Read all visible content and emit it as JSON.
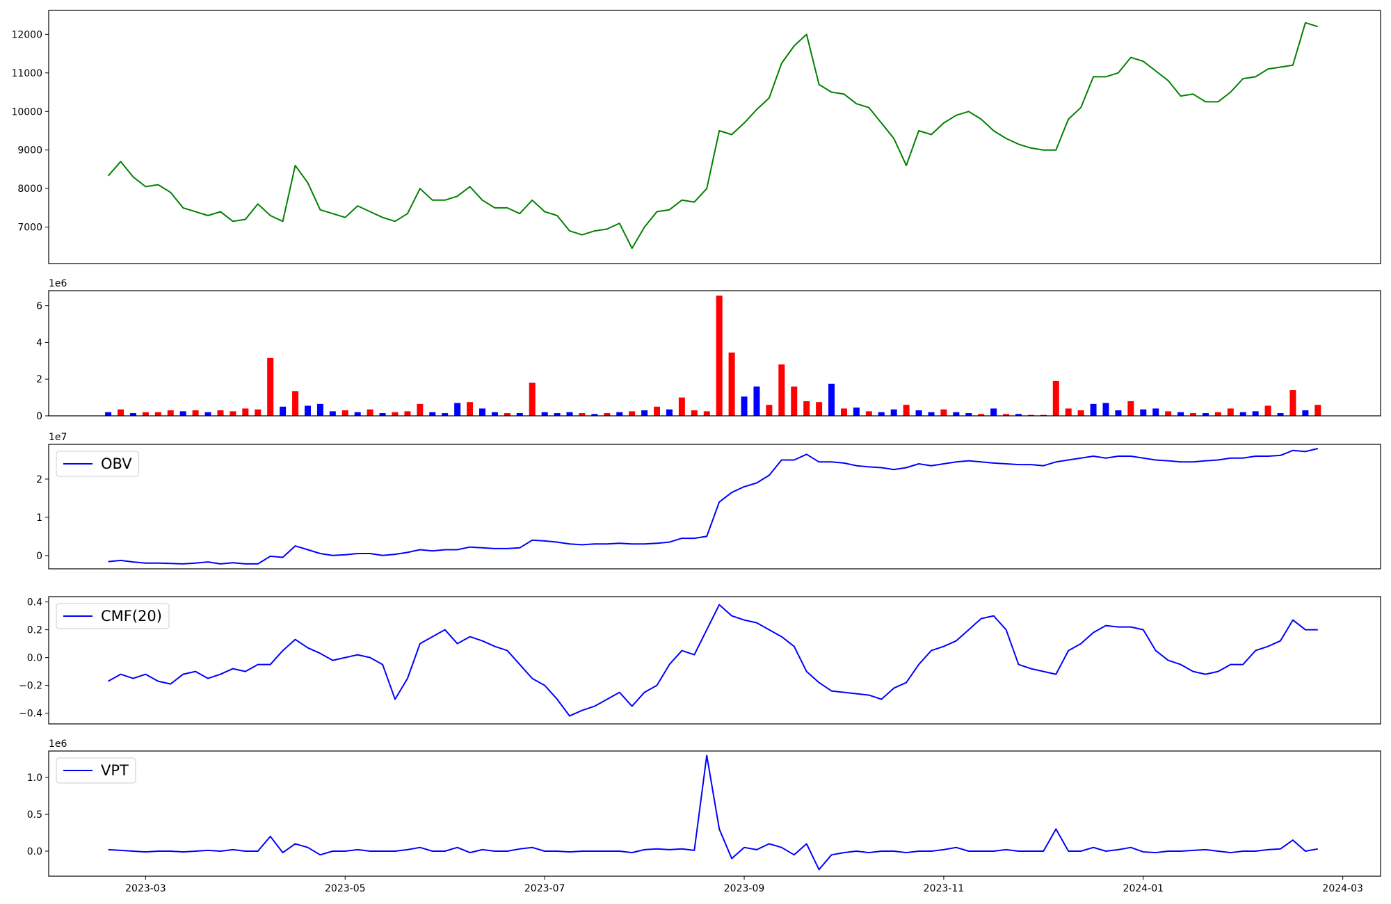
{
  "chart_data": [
    {
      "type": "line",
      "ylim": [
        6055,
        12620
      ],
      "yticks": [
        7000,
        8000,
        9000,
        10000,
        11000,
        12000
      ],
      "series": [
        {
          "color": "green",
          "values": [
            8330,
            8700,
            8300,
            8050,
            8100,
            7900,
            7500,
            7400,
            7300,
            7400,
            7150,
            7200,
            7600,
            7300,
            7150,
            8600,
            8150,
            7450,
            7350,
            7250,
            7550,
            7400,
            7250,
            7150,
            7350,
            8000,
            7700,
            7700,
            7800,
            8050,
            7700,
            7500,
            7500,
            7350,
            7700,
            7400,
            7300,
            6900,
            6800,
            6900,
            6950,
            7100,
            6450,
            7000,
            7400,
            7450,
            7700,
            7650,
            8000,
            9500,
            9400,
            9700,
            10050,
            10350,
            11250,
            11700,
            12000,
            10700,
            10500,
            10450,
            10200,
            10100,
            9700,
            9300,
            8600,
            9500,
            9400,
            9700,
            9900,
            10000,
            9800,
            9500,
            9300,
            9150,
            9050,
            9000,
            9000,
            9800,
            10100,
            10900,
            10900,
            11000,
            11400,
            11300,
            11050,
            10800,
            10400,
            10450,
            10250,
            10250,
            10500,
            10850,
            10900,
            11100,
            11150,
            11200,
            12300,
            12200,
            null,
            null
          ]
        }
      ]
    },
    {
      "type": "bar",
      "offset_label": "1e6",
      "ylim": [
        0,
        6.82
      ],
      "yticks": [
        0,
        2,
        4,
        6
      ],
      "values": [
        0.2,
        0.35,
        0.15,
        0.2,
        0.2,
        0.3,
        0.25,
        0.3,
        0.2,
        0.3,
        0.25,
        0.4,
        0.35,
        3.15,
        0.5,
        1.35,
        0.55,
        0.65,
        0.25,
        0.3,
        0.2,
        0.35,
        0.15,
        0.2,
        0.25,
        0.65,
        0.2,
        0.15,
        0.7,
        0.75,
        0.4,
        0.2,
        0.15,
        0.15,
        1.8,
        0.2,
        0.15,
        0.2,
        0.15,
        0.1,
        0.15,
        0.2,
        0.25,
        0.3,
        0.5,
        0.35,
        1.0,
        0.3,
        0.25,
        6.55,
        3.45,
        1.05,
        1.6,
        0.6,
        2.8,
        1.6,
        0.8,
        0.75,
        1.75,
        0.4,
        0.45,
        0.25,
        0.2,
        0.35,
        0.6,
        0.3,
        0.2,
        0.35,
        0.2,
        0.15,
        0.1,
        0.4,
        0.1,
        0.1,
        0.05,
        0.05,
        1.9,
        0.4,
        0.3,
        0.65,
        0.7,
        0.3,
        0.8,
        0.35,
        0.4,
        0.25,
        0.2,
        0.15,
        0.15,
        0.2,
        0.4,
        0.2,
        0.25,
        0.55,
        0.15,
        1.4,
        0.3,
        0.6,
        null,
        null
      ],
      "colors": [
        "blue",
        "red",
        "blue",
        "red",
        "red",
        "red",
        "blue",
        "red",
        "blue",
        "red",
        "red",
        "red",
        "red",
        "red",
        "blue",
        "red",
        "blue",
        "blue",
        "blue",
        "red",
        "blue",
        "red",
        "blue",
        "red",
        "red",
        "red",
        "blue",
        "blue",
        "blue",
        "red",
        "blue",
        "blue",
        "red",
        "blue",
        "red",
        "blue",
        "blue",
        "blue",
        "red",
        "blue",
        "red",
        "blue",
        "red",
        "blue",
        "red",
        "blue",
        "red",
        "red",
        "red",
        "red",
        "red",
        "blue",
        "blue",
        "red",
        "red",
        "red",
        "red",
        "red",
        "blue",
        "red",
        "blue",
        "red",
        "blue",
        "blue",
        "red",
        "blue",
        "blue",
        "red",
        "blue",
        "blue",
        "red",
        "blue",
        "red",
        "blue",
        "red",
        "red",
        "red",
        "red",
        "red",
        "blue",
        "blue",
        "blue",
        "red",
        "blue",
        "blue",
        "red",
        "blue",
        "red",
        "blue",
        "red",
        "red",
        "blue",
        "blue",
        "red",
        "blue",
        "red",
        "blue",
        "red",
        null,
        null
      ]
    },
    {
      "type": "line",
      "offset_label": "1e7",
      "ylim": [
        -0.35,
        2.91
      ],
      "yticks": [
        0,
        1,
        2
      ],
      "legend": "upper left",
      "series": [
        {
          "name": "OBV",
          "color": "blue",
          "values": [
            -0.16,
            -0.13,
            -0.17,
            -0.2,
            -0.2,
            -0.21,
            -0.22,
            -0.2,
            -0.17,
            -0.22,
            -0.19,
            -0.22,
            -0.22,
            -0.02,
            -0.05,
            0.25,
            0.15,
            0.05,
            0.0,
            0.02,
            0.05,
            0.05,
            0.0,
            0.03,
            0.08,
            0.15,
            0.12,
            0.15,
            0.15,
            0.22,
            0.2,
            0.18,
            0.18,
            0.2,
            0.4,
            0.38,
            0.35,
            0.3,
            0.28,
            0.3,
            0.3,
            0.32,
            0.3,
            0.3,
            0.32,
            0.35,
            0.45,
            0.45,
            0.5,
            1.4,
            1.65,
            1.8,
            1.9,
            2.1,
            2.5,
            2.5,
            2.65,
            2.45,
            2.45,
            2.42,
            2.35,
            2.32,
            2.3,
            2.25,
            2.3,
            2.4,
            2.35,
            2.4,
            2.45,
            2.48,
            2.45,
            2.42,
            2.4,
            2.38,
            2.38,
            2.35,
            2.45,
            2.5,
            2.55,
            2.6,
            2.55,
            2.6,
            2.6,
            2.55,
            2.5,
            2.48,
            2.45,
            2.45,
            2.48,
            2.5,
            2.55,
            2.55,
            2.6,
            2.6,
            2.62,
            2.75,
            2.72,
            2.8,
            null,
            null
          ]
        }
      ]
    },
    {
      "type": "line",
      "ylim": [
        -0.477,
        0.438
      ],
      "yticks": [
        {
          "value": -0.4,
          "label": "−0.4"
        },
        {
          "value": -0.2,
          "label": "−0.2"
        },
        {
          "value": 0,
          "label": "0.0"
        },
        0.2,
        0.4
      ],
      "legend": "upper left",
      "series": [
        {
          "name": "CMF(20)",
          "color": "blue",
          "values": [
            -0.17,
            -0.12,
            -0.15,
            -0.12,
            -0.17,
            -0.19,
            -0.12,
            -0.1,
            -0.15,
            -0.12,
            -0.08,
            -0.1,
            -0.05,
            -0.05,
            0.05,
            0.13,
            0.07,
            0.03,
            -0.02,
            0.0,
            0.02,
            0.0,
            -0.05,
            -0.3,
            -0.15,
            0.1,
            0.15,
            0.2,
            0.1,
            0.15,
            0.12,
            0.08,
            0.05,
            -0.05,
            -0.15,
            -0.2,
            -0.3,
            -0.42,
            -0.38,
            -0.35,
            -0.3,
            -0.25,
            -0.35,
            -0.25,
            -0.2,
            -0.05,
            0.05,
            0.02,
            0.2,
            0.38,
            0.3,
            0.27,
            0.25,
            0.2,
            0.15,
            0.08,
            -0.1,
            -0.18,
            -0.24,
            -0.25,
            -0.26,
            -0.27,
            -0.3,
            -0.22,
            -0.18,
            -0.05,
            0.05,
            0.08,
            0.12,
            0.2,
            0.28,
            0.3,
            0.2,
            -0.05,
            -0.08,
            -0.1,
            -0.12,
            0.05,
            0.1,
            0.18,
            0.23,
            0.22,
            0.22,
            0.2,
            0.05,
            -0.02,
            -0.05,
            -0.1,
            -0.12,
            -0.1,
            -0.05,
            -0.05,
            0.05,
            0.08,
            0.12,
            0.27,
            0.2,
            0.2,
            null,
            null
          ]
        }
      ]
    },
    {
      "type": "line",
      "offset_label": "1e6",
      "ylim": [
        -0.34,
        1.36
      ],
      "yticks": [
        {
          "value": 0,
          "label": "0.0"
        },
        0.5,
        {
          "value": 1,
          "label": "1.0"
        }
      ],
      "legend": "upper left",
      "categories": [
        null,
        null,
        null,
        "2023-03",
        null,
        null,
        null,
        null,
        null,
        null,
        null,
        null,
        null,
        null,
        null,
        null,
        null,
        null,
        null,
        "2023-05",
        null,
        null,
        null,
        null,
        null,
        null,
        null,
        null,
        null,
        null,
        null,
        null,
        null,
        null,
        null,
        "2023-07",
        null,
        null,
        null,
        null,
        null,
        null,
        null,
        null,
        null,
        null,
        null,
        null,
        null,
        null,
        null,
        "2023-09",
        null,
        null,
        null,
        null,
        null,
        null,
        null,
        null,
        null,
        null,
        null,
        null,
        null,
        null,
        null,
        "2023-11",
        null,
        null,
        null,
        null,
        null,
        null,
        null,
        null,
        null,
        null,
        null,
        null,
        null,
        null,
        null,
        "2024-01",
        null,
        null,
        null,
        null,
        null,
        null,
        null,
        null,
        null,
        null,
        null,
        null,
        null,
        null,
        null,
        "2024-03"
      ],
      "series": [
        {
          "name": "VPT",
          "color": "blue",
          "values": [
            0.02,
            0.01,
            0.0,
            -0.01,
            0.0,
            0.0,
            -0.01,
            0.0,
            0.01,
            0.0,
            0.02,
            0.0,
            0.0,
            0.2,
            -0.02,
            0.1,
            0.05,
            -0.05,
            0.0,
            0.0,
            0.02,
            0.0,
            0.0,
            0.0,
            0.02,
            0.05,
            0.0,
            0.0,
            0.05,
            -0.02,
            0.02,
            0.0,
            0.0,
            0.03,
            0.05,
            0.0,
            0.0,
            -0.01,
            0.0,
            0.0,
            0.0,
            0.0,
            -0.02,
            0.02,
            0.03,
            0.02,
            0.03,
            0.01,
            1.3,
            0.3,
            -0.1,
            0.05,
            0.02,
            0.1,
            0.05,
            -0.05,
            0.1,
            -0.25,
            -0.05,
            -0.02,
            0.0,
            -0.02,
            0.0,
            0.0,
            -0.02,
            0.0,
            0.0,
            0.02,
            0.05,
            0.0,
            0.0,
            0.0,
            0.02,
            0.0,
            0.0,
            0.0,
            0.3,
            0.0,
            0.0,
            0.05,
            0.0,
            0.02,
            0.05,
            -0.01,
            -0.02,
            0.0,
            0.0,
            0.01,
            0.02,
            0.0,
            -0.02,
            0.0,
            0.0,
            0.02,
            0.03,
            0.15,
            0.0,
            0.03,
            null,
            null
          ]
        }
      ]
    }
  ]
}
